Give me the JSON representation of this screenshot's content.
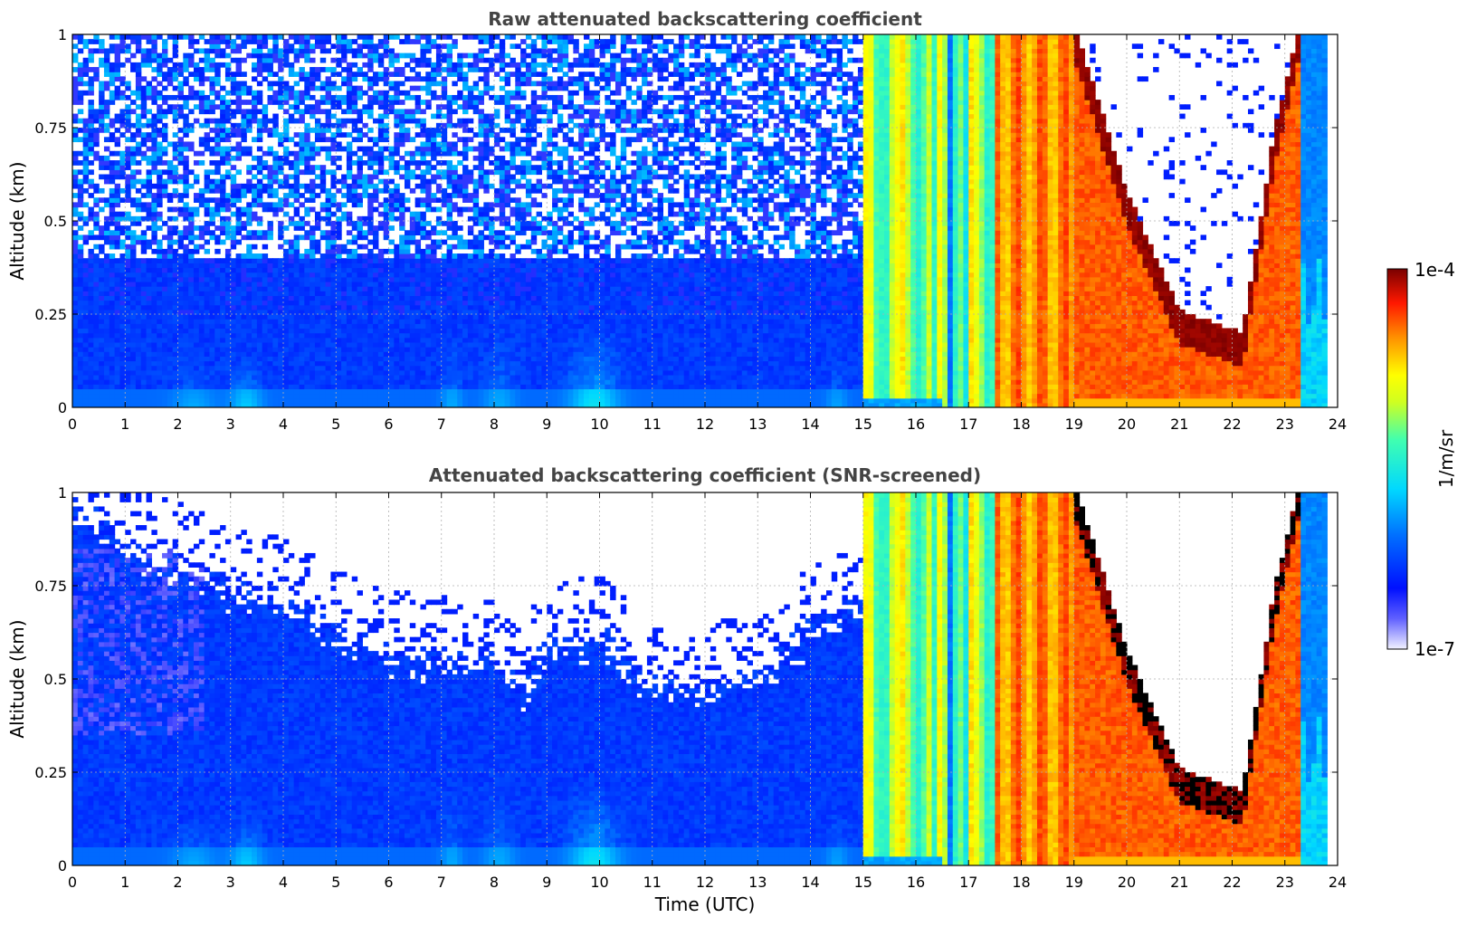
{
  "chart_data": [
    {
      "type": "heatmap",
      "title": "Raw attenuated backscattering coefficient",
      "xlabel": "",
      "ylabel": "Altitude (km)",
      "xlim": [
        0,
        24
      ],
      "ylim": [
        0,
        1
      ],
      "x_ticks": [
        0,
        1,
        2,
        3,
        4,
        5,
        6,
        7,
        8,
        9,
        10,
        11,
        12,
        13,
        14,
        15,
        16,
        17,
        18,
        19,
        20,
        21,
        22,
        23,
        24
      ],
      "y_ticks": [
        0,
        0.25,
        0.5,
        0.75,
        1
      ],
      "y_tick_labels": [
        "0",
        "0.25",
        "0.5",
        "0.75",
        "1"
      ],
      "grid": true,
      "data_end_time": 23.8,
      "segments": [
        {
          "start": 0,
          "end": 15.05,
          "description": "low backscatter, noisy above 0.4 km, with faint near-surface plumes near 2–3.5 h and 9.5–10.5 h"
        },
        {
          "start": 15.05,
          "end": 17.5,
          "description": "column-wide yellow/orange/green values"
        },
        {
          "start": 17.5,
          "end": 19.0,
          "description": "orange/red column-wide values"
        },
        {
          "start": 19.0,
          "end": 23.8,
          "description": "strong red layer that descends to about 0.1 km near 21–22 h, with clear air above, then rises back near 23 h"
        }
      ]
    },
    {
      "type": "heatmap",
      "title": "Attenuated backscattering coefficient (SNR-screened)",
      "xlabel": "Time (UTC)",
      "ylabel": "Altitude (km)",
      "xlim": [
        0,
        24
      ],
      "ylim": [
        0,
        1
      ],
      "x_ticks": [
        0,
        1,
        2,
        3,
        4,
        5,
        6,
        7,
        8,
        9,
        10,
        11,
        12,
        13,
        14,
        15,
        16,
        17,
        18,
        19,
        20,
        21,
        22,
        23,
        24
      ],
      "y_ticks": [
        0,
        0.25,
        0.5,
        0.75,
        1
      ],
      "y_tick_labels": [
        "0",
        "0.25",
        "0.5",
        "0.75",
        "1"
      ],
      "grid": true,
      "data_end_time": 23.8,
      "screened_top_altitude": [
        {
          "time": 0,
          "altitude": 0.95
        },
        {
          "time": 1,
          "altitude": 0.85
        },
        {
          "time": 2,
          "altitude": 0.8
        },
        {
          "time": 3,
          "altitude": 0.72
        },
        {
          "time": 4,
          "altitude": 0.7
        },
        {
          "time": 5,
          "altitude": 0.62
        },
        {
          "time": 6,
          "altitude": 0.56
        },
        {
          "time": 7,
          "altitude": 0.54
        },
        {
          "time": 8,
          "altitude": 0.55
        },
        {
          "time": 8.5,
          "altitude": 0.45
        },
        {
          "time": 9,
          "altitude": 0.58
        },
        {
          "time": 10,
          "altitude": 0.6
        },
        {
          "time": 11,
          "altitude": 0.47
        },
        {
          "time": 12,
          "altitude": 0.47
        },
        {
          "time": 13,
          "altitude": 0.5
        },
        {
          "time": 14,
          "altitude": 0.62
        },
        {
          "time": 15,
          "altitude": 0.7
        }
      ]
    }
  ],
  "colorbar": {
    "label": "1/m/sr",
    "max_label": "1e-4",
    "min_label": "1e-7",
    "scale": "log",
    "range": [
      1e-07,
      0.0001
    ]
  },
  "colors": {
    "low": "#e6e6ff",
    "blue": "#0020ff",
    "cyan": "#00e0ff",
    "yellow": "#ffff00",
    "orange": "#ff8000",
    "red": "#e00000",
    "dark_red": "#800000",
    "title_text": "#444444"
  }
}
